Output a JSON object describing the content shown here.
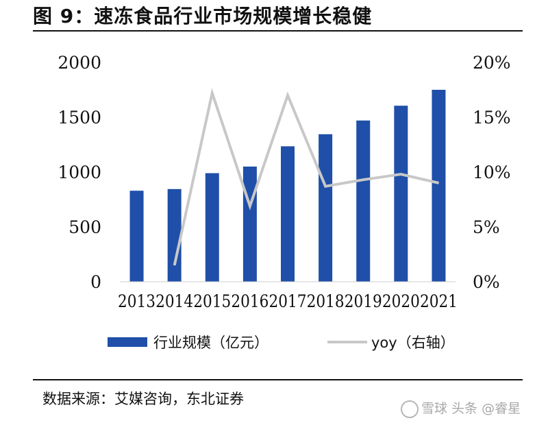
{
  "title": "图  9：速冻食品行业市场规模增长稳健",
  "source": "数据来源：艾媒咨询，东北证券",
  "watermark": "雪球  头条 @睿星",
  "chart_data": {
    "type": "bar+line",
    "categories": [
      "2013",
      "2014",
      "2015",
      "2016",
      "2017",
      "2018",
      "2019",
      "2020",
      "2021"
    ],
    "series": [
      {
        "name": "行业规模（亿元）",
        "type": "bar",
        "axis": "left",
        "color": "#1F4FA8",
        "values": [
          830,
          845,
          990,
          1050,
          1235,
          1345,
          1470,
          1605,
          1750
        ]
      },
      {
        "name": "yoy（右轴）",
        "type": "line",
        "axis": "right",
        "color": "#c8c8c8",
        "values": [
          null,
          1.5,
          17.2,
          6.9,
          17.0,
          8.7,
          9.3,
          9.8,
          9.0
        ]
      }
    ],
    "y_left": {
      "min": 0,
      "max": 2000,
      "ticks": [
        "0",
        "500",
        "1000",
        "1500",
        "2000"
      ]
    },
    "y_right": {
      "min": 0,
      "max": 20,
      "ticks": [
        "0%",
        "5%",
        "10%",
        "15%",
        "20%"
      ]
    },
    "legend_position": "bottom",
    "grid": false
  }
}
